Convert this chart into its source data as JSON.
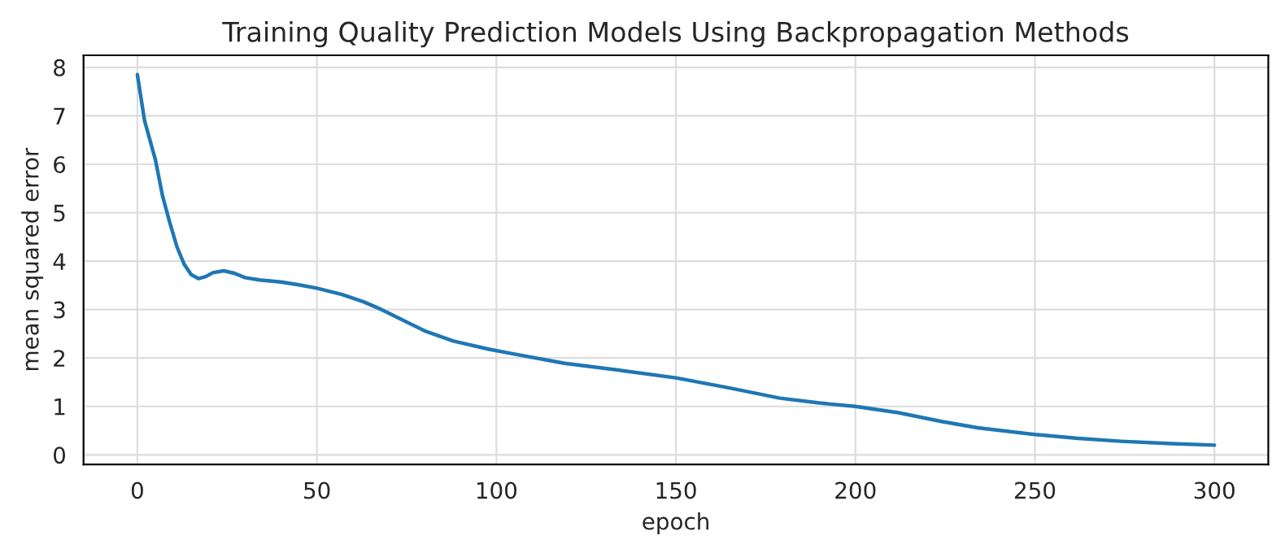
{
  "chart_data": {
    "type": "line",
    "title": "Training Quality Prediction Models Using Backpropagation Methods",
    "xlabel": "epoch",
    "ylabel": "mean squared error",
    "series": [
      {
        "color": "#1f77b4",
        "x": [
          0,
          2,
          5,
          7,
          9,
          11,
          13,
          15,
          17,
          19,
          21,
          24,
          27,
          30,
          34,
          40,
          45,
          50,
          57,
          63,
          68,
          74,
          80,
          88,
          98,
          105,
          119,
          135,
          150,
          165,
          179,
          190,
          200,
          212,
          224,
          234,
          250,
          262,
          274,
          288,
          300
        ],
        "values": [
          7.85,
          6.9,
          6.1,
          5.35,
          4.8,
          4.3,
          3.94,
          3.72,
          3.64,
          3.68,
          3.76,
          3.8,
          3.75,
          3.66,
          3.61,
          3.57,
          3.51,
          3.44,
          3.31,
          3.16,
          3.0,
          2.78,
          2.56,
          2.35,
          2.18,
          2.08,
          1.89,
          1.74,
          1.59,
          1.38,
          1.17,
          1.07,
          1.0,
          0.87,
          0.69,
          0.56,
          0.42,
          0.34,
          0.28,
          0.23,
          0.2
        ]
      }
    ],
    "xlim": [
      -15,
      315
    ],
    "ylim": [
      -0.2,
      8.25
    ],
    "xticks": [
      0,
      50,
      100,
      150,
      200,
      250,
      300
    ],
    "yticks": [
      0,
      1,
      2,
      3,
      4,
      5,
      6,
      7,
      8
    ],
    "grid": true,
    "line_style": "solid",
    "marker": "none"
  }
}
